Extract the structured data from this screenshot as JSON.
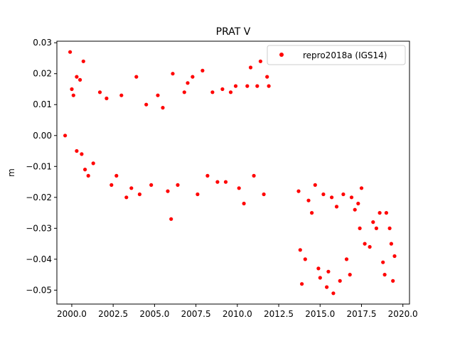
{
  "chart_data": {
    "type": "scatter",
    "title": "PRAT V",
    "xlabel": "",
    "ylabel": "m",
    "xlim": [
      1999.1,
      2020.4
    ],
    "ylim": [
      -0.0545,
      0.0305
    ],
    "xticks": [
      2000.0,
      2002.5,
      2005.0,
      2007.5,
      2010.0,
      2012.5,
      2015.0,
      2017.5,
      2020.0
    ],
    "xtick_labels": [
      "2000.0",
      "2002.5",
      "2005.0",
      "2007.5",
      "2010.0",
      "2012.5",
      "2015.0",
      "2017.5",
      "2020.0"
    ],
    "yticks": [
      0.03,
      0.02,
      0.01,
      0.0,
      -0.01,
      -0.02,
      -0.03,
      -0.04,
      -0.05
    ],
    "ytick_labels": [
      "0.03",
      "0.02",
      "0.01",
      "0.00",
      "−0.01",
      "−0.02",
      "−0.03",
      "−0.04",
      "−0.05"
    ],
    "grid": false,
    "legend_position": "top-right",
    "series": [
      {
        "name": "repro2018a (IGS14)",
        "color": "#ff0000",
        "marker": "circle",
        "points": [
          [
            1999.6,
            0.0
          ],
          [
            1999.9,
            0.027
          ],
          [
            2000.0,
            0.015
          ],
          [
            2000.1,
            0.013
          ],
          [
            2000.3,
            0.019
          ],
          [
            2000.5,
            0.018
          ],
          [
            2000.7,
            0.024
          ],
          [
            2000.3,
            -0.005
          ],
          [
            2000.6,
            -0.006
          ],
          [
            2000.8,
            -0.011
          ],
          [
            2001.0,
            -0.013
          ],
          [
            2001.3,
            -0.009
          ],
          [
            2001.7,
            0.014
          ],
          [
            2002.1,
            0.012
          ],
          [
            2002.4,
            -0.016
          ],
          [
            2002.7,
            -0.013
          ],
          [
            2003.0,
            0.013
          ],
          [
            2003.3,
            -0.02
          ],
          [
            2003.6,
            -0.017
          ],
          [
            2003.9,
            0.019
          ],
          [
            2004.1,
            -0.019
          ],
          [
            2004.5,
            0.01
          ],
          [
            2004.8,
            -0.016
          ],
          [
            2005.2,
            0.013
          ],
          [
            2005.5,
            0.009
          ],
          [
            2005.8,
            -0.018
          ],
          [
            2006.0,
            -0.027
          ],
          [
            2006.1,
            0.02
          ],
          [
            2006.4,
            -0.016
          ],
          [
            2006.8,
            0.014
          ],
          [
            2007.0,
            0.017
          ],
          [
            2007.3,
            0.019
          ],
          [
            2007.6,
            -0.019
          ],
          [
            2007.9,
            0.021
          ],
          [
            2008.2,
            -0.013
          ],
          [
            2008.5,
            0.014
          ],
          [
            2008.8,
            -0.015
          ],
          [
            2009.1,
            0.015
          ],
          [
            2009.3,
            -0.015
          ],
          [
            2009.6,
            0.014
          ],
          [
            2009.9,
            0.016
          ],
          [
            2010.1,
            -0.017
          ],
          [
            2010.4,
            -0.022
          ],
          [
            2010.6,
            0.016
          ],
          [
            2010.8,
            0.022
          ],
          [
            2011.0,
            -0.013
          ],
          [
            2011.2,
            0.016
          ],
          [
            2011.4,
            0.024
          ],
          [
            2011.6,
            -0.019
          ],
          [
            2011.8,
            0.019
          ],
          [
            2011.9,
            0.016
          ],
          [
            2013.7,
            -0.018
          ],
          [
            2013.8,
            -0.037
          ],
          [
            2013.9,
            -0.048
          ],
          [
            2014.1,
            -0.04
          ],
          [
            2014.3,
            -0.021
          ],
          [
            2014.5,
            -0.025
          ],
          [
            2014.7,
            -0.016
          ],
          [
            2014.9,
            -0.043
          ],
          [
            2015.0,
            -0.046
          ],
          [
            2015.2,
            -0.019
          ],
          [
            2015.4,
            -0.049
          ],
          [
            2015.5,
            -0.044
          ],
          [
            2015.7,
            -0.02
          ],
          [
            2015.8,
            -0.051
          ],
          [
            2016.0,
            -0.023
          ],
          [
            2016.2,
            -0.047
          ],
          [
            2016.4,
            -0.019
          ],
          [
            2016.6,
            -0.04
          ],
          [
            2016.8,
            -0.045
          ],
          [
            2016.9,
            -0.02
          ],
          [
            2017.1,
            -0.024
          ],
          [
            2017.3,
            -0.022
          ],
          [
            2017.4,
            -0.03
          ],
          [
            2017.5,
            -0.017
          ],
          [
            2017.7,
            -0.035
          ],
          [
            2018.0,
            -0.036
          ],
          [
            2018.2,
            -0.028
          ],
          [
            2018.4,
            -0.03
          ],
          [
            2018.6,
            -0.025
          ],
          [
            2018.8,
            -0.041
          ],
          [
            2018.9,
            -0.045
          ],
          [
            2019.0,
            -0.025
          ],
          [
            2019.2,
            -0.03
          ],
          [
            2019.3,
            -0.035
          ],
          [
            2019.4,
            -0.047
          ],
          [
            2019.5,
            -0.039
          ]
        ]
      }
    ]
  }
}
